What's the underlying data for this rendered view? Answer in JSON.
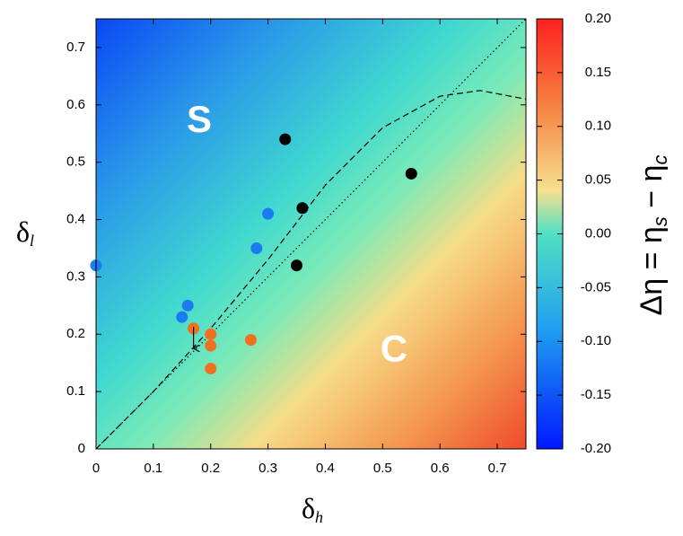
{
  "chart_data": {
    "type": "scatter",
    "xlabel": {
      "text": "δ",
      "sub": "h"
    },
    "ylabel": {
      "text": "δ",
      "sub": "l"
    },
    "annotations": [
      {
        "text": "S",
        "x": 0.18,
        "y": 0.57
      },
      {
        "text": "C",
        "x": 0.52,
        "y": 0.17
      }
    ],
    "xlim": [
      0,
      0.75
    ],
    "ylim": [
      0,
      0.75
    ],
    "xticks": [
      0,
      0.1,
      0.2,
      0.3,
      0.4,
      0.5,
      0.6,
      0.7
    ],
    "yticks": [
      0,
      0.1,
      0.2,
      0.3,
      0.4,
      0.5,
      0.6,
      0.7
    ],
    "series": [
      {
        "color": "#1a7cf0",
        "x": [
          0,
          0.15,
          0.16,
          0.28,
          0.3
        ],
        "values": [
          0.32,
          0.23,
          0.25,
          0.35,
          0.41
        ]
      },
      {
        "color": "#f0701e",
        "x": [
          0.17,
          0.2,
          0.2,
          0.2,
          0.27
        ],
        "values": [
          0.21,
          0.2,
          0.18,
          0.14,
          0.19
        ]
      },
      {
        "color": "#000000",
        "x": [
          0.33,
          0.36,
          0.35,
          0.55
        ],
        "values": [
          0.54,
          0.42,
          0.32,
          0.48
        ]
      }
    ],
    "lines": [
      {
        "style": "dashed",
        "color": "#000000",
        "x": [
          0,
          0.1,
          0.2,
          0.3,
          0.4,
          0.5,
          0.6,
          0.67,
          0.75
        ],
        "values": [
          0,
          0.1,
          0.21,
          0.33,
          0.46,
          0.56,
          0.615,
          0.625,
          0.61
        ]
      },
      {
        "style": "dotted",
        "color": "#000000",
        "x": [
          0,
          0.75
        ],
        "values": [
          0,
          0.75
        ]
      }
    ],
    "colorbar": {
      "label": [
        "Δη = η",
        "s",
        " − η",
        "c"
      ],
      "lim": [
        -0.2,
        0.2
      ],
      "ticks": [
        {
          "value": 0.2,
          "label": "0.20"
        },
        0.15,
        {
          "value": 0.1,
          "label": "0.10"
        },
        0.05,
        {
          "value": 0,
          "label": "0.00"
        },
        -0.05,
        {
          "value": -0.1,
          "label": "-0.10"
        },
        -0.15,
        {
          "value": -0.2,
          "label": "-0.20"
        }
      ]
    }
  }
}
